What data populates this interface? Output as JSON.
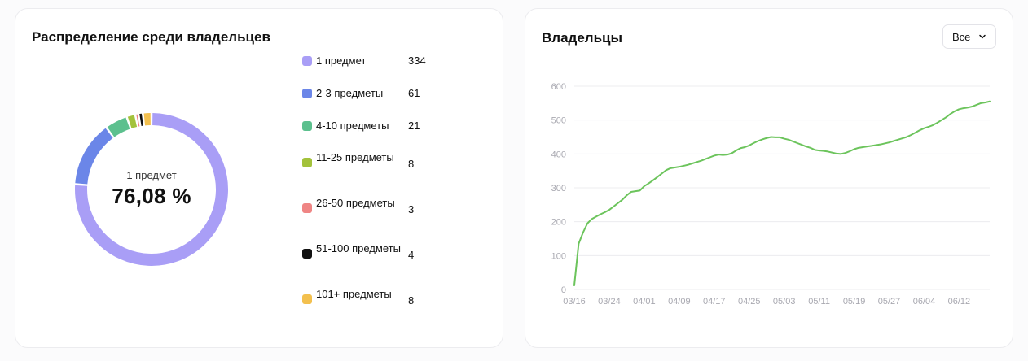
{
  "distribution_card": {
    "title": "Распределение среди владельцев",
    "center_label": "1 предмет",
    "center_value": "76,08 %"
  },
  "owners_card": {
    "title": "Владельцы",
    "period_select": {
      "selected": "Все"
    }
  },
  "chart_data": [
    {
      "type": "pie",
      "variant": "donut",
      "title": "Распределение среди владельцев",
      "categories": [
        "1 предмет",
        "2-3 предметы",
        "4-10 предметы",
        "11-25 предметы",
        "26-50 предметы",
        "51-100 предметы",
        "101+ предметы"
      ],
      "values": [
        334,
        61,
        21,
        8,
        3,
        4,
        8
      ],
      "value_labels": [
        "334",
        "61",
        "21",
        "8",
        "3",
        "4",
        "8"
      ],
      "colors": [
        "#a99ef6",
        "#6b86e8",
        "#5cc08e",
        "#a3c23b",
        "#ef8584",
        "#111111",
        "#f3c04e"
      ],
      "legend_position": "right"
    },
    {
      "type": "line",
      "title": "Владельцы",
      "xlabel": "",
      "ylabel": "",
      "x_ticks": [
        "03/16",
        "03/24",
        "04/01",
        "04/09",
        "04/17",
        "04/25",
        "05/03",
        "05/11",
        "05/19",
        "05/27",
        "06/04",
        "06/12"
      ],
      "y_ticks": [
        0,
        100,
        200,
        300,
        400,
        500,
        600
      ],
      "ylim": [
        0,
        600
      ],
      "grid": true,
      "color": "#6cc45c",
      "series": [
        {
          "x": [
            "03/16",
            "03/17",
            "03/18",
            "03/19",
            "03/20",
            "03/21",
            "03/22",
            "03/23",
            "03/24",
            "03/25",
            "03/26",
            "03/27",
            "03/28",
            "03/29",
            "03/30",
            "03/31",
            "04/01",
            "04/02",
            "04/03",
            "04/04",
            "04/05",
            "04/06",
            "04/07",
            "04/08",
            "04/09",
            "04/10",
            "04/11",
            "04/12",
            "04/13",
            "04/14",
            "04/15",
            "04/16",
            "04/17",
            "04/18",
            "04/19",
            "04/20",
            "04/21",
            "04/22",
            "04/23",
            "04/24",
            "04/25",
            "04/26",
            "04/27",
            "04/28",
            "04/29",
            "04/30",
            "05/01",
            "05/02",
            "05/03",
            "05/04",
            "05/05",
            "05/06",
            "05/07",
            "05/08",
            "05/09",
            "05/10",
            "05/11",
            "05/12",
            "05/13",
            "05/14",
            "05/15",
            "05/16",
            "05/17",
            "05/18",
            "05/19",
            "05/20",
            "05/21",
            "05/22",
            "05/23",
            "05/24",
            "05/25",
            "05/26",
            "05/27",
            "05/28",
            "05/29",
            "05/30",
            "05/31",
            "06/01",
            "06/02",
            "06/03",
            "06/04",
            "06/05",
            "06/06",
            "06/07",
            "06/08",
            "06/09",
            "06/10",
            "06/11",
            "06/12",
            "06/13",
            "06/14",
            "06/15",
            "06/16",
            "06/17",
            "06/18",
            "06/19"
          ],
          "y": [
            12,
            135,
            168,
            195,
            208,
            215,
            222,
            228,
            235,
            245,
            255,
            265,
            278,
            288,
            290,
            292,
            305,
            313,
            322,
            332,
            342,
            352,
            358,
            360,
            362,
            365,
            368,
            372,
            376,
            380,
            385,
            390,
            395,
            398,
            397,
            398,
            402,
            410,
            417,
            420,
            425,
            432,
            438,
            443,
            447,
            450,
            449,
            449,
            445,
            442,
            437,
            432,
            427,
            422,
            418,
            412,
            410,
            409,
            407,
            404,
            401,
            400,
            403,
            408,
            414,
            418,
            420,
            422,
            424,
            426,
            428,
            431,
            434,
            438,
            442,
            446,
            450,
            456,
            463,
            470,
            476,
            480,
            485,
            492,
            500,
            508,
            518,
            526,
            532,
            535,
            537,
            540,
            545,
            550,
            552,
            555
          ]
        }
      ]
    }
  ]
}
